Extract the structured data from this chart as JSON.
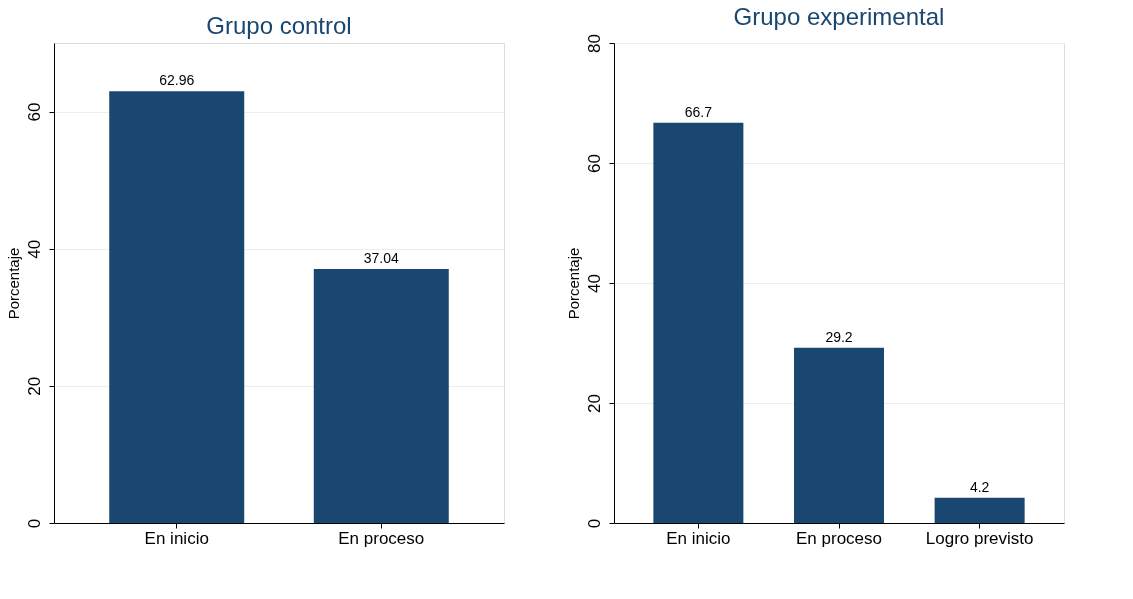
{
  "chart_data": [
    {
      "type": "bar",
      "title": "Grupo control",
      "ylabel": "Porcentaje",
      "categories": [
        "En inicio",
        "En proceso"
      ],
      "series": [
        {
          "color": "#1a476f",
          "values": [
            62.96,
            37.04
          ]
        }
      ],
      "ylim": [
        0,
        70
      ],
      "yticks": [
        0,
        20,
        40,
        60
      ],
      "grid": "y",
      "data_labels": true
    },
    {
      "type": "bar",
      "title": "Grupo experimental",
      "ylabel": "Porcentaje",
      "categories": [
        "En inicio",
        "En proceso",
        "Logro previsto"
      ],
      "series": [
        {
          "color": "#1a476f",
          "values": [
            66.7,
            29.2,
            4.2
          ]
        }
      ],
      "ylim": [
        0,
        80
      ],
      "yticks": [
        0,
        20,
        40,
        60,
        80
      ],
      "grid": "y",
      "data_labels": true
    }
  ]
}
